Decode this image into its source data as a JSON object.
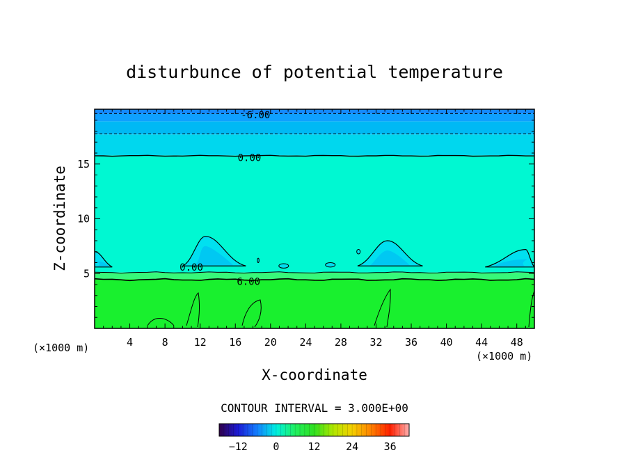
{
  "chart_data": {
    "type": "contour",
    "title": "disturbunce of potential temperature",
    "xlabel": "X-coordinate",
    "ylabel": "Z-coordinate",
    "x_unit_left": "(×1000 m)",
    "x_unit_right": "(×1000 m)",
    "xlim": [
      0,
      50
    ],
    "ylim": [
      0,
      20
    ],
    "x_ticks": [
      4,
      8,
      12,
      16,
      20,
      24,
      28,
      32,
      36,
      40,
      44,
      48
    ],
    "y_ticks": [
      5,
      10,
      15
    ],
    "contour_interval_text": "CONTOUR INTERVAL = 3.000E+00",
    "contour_labels": [
      {
        "text": "-6.00",
        "x": 18.3,
        "z": 19.5
      },
      {
        "text": "0.00",
        "x": 17.6,
        "z": 15.6
      },
      {
        "text": "0.00",
        "x": 11.0,
        "z": 5.6
      },
      {
        "text": "6.00",
        "x": 17.5,
        "z": 4.3
      }
    ],
    "bands": [
      {
        "z0": 0.0,
        "z1": 4.5,
        "value": 9,
        "color": "#19f02e"
      },
      {
        "z0": 4.5,
        "z1": 5.1,
        "value": 6,
        "color": "#37f87a"
      },
      {
        "z0": 5.1,
        "z1": 15.8,
        "value": 1.5,
        "color": "#00f8d2"
      },
      {
        "z0": 15.8,
        "z1": 17.7,
        "value": -1.5,
        "color": "#00d7ee"
      },
      {
        "z0": 17.7,
        "z1": 18.9,
        "value": -3.5,
        "color": "#00b9f4"
      },
      {
        "z0": 18.9,
        "z1": 19.6,
        "value": -5,
        "color": "#0fa0ff"
      },
      {
        "z0": 19.6,
        "z1": 20.0,
        "value": -6.5,
        "color": "#1489ff"
      }
    ],
    "cold_bubbles": [
      {
        "x_left": 10.0,
        "x_right": 17.2,
        "peak_x": 12.6,
        "peak_z": 8.4,
        "base_z": 5.7
      },
      {
        "x_left": 29.9,
        "x_right": 37.3,
        "peak_x": 33.3,
        "peak_z": 8.0,
        "base_z": 5.7
      },
      {
        "x_left": 44.4,
        "x_right": 50.0,
        "peak_x": 49.0,
        "peak_z": 7.2,
        "base_z": 5.6
      },
      {
        "x_left": 0.0,
        "x_right": 2.0,
        "peak_x": 0.0,
        "peak_z": 7.0,
        "base_z": 5.6
      }
    ],
    "colorbar": {
      "range": [
        -18,
        42
      ],
      "ticks": [
        -12,
        0,
        12,
        24,
        36
      ],
      "stops": [
        {
          "v": -18,
          "color": "#30004a"
        },
        {
          "v": -12,
          "color": "#1b1bd6"
        },
        {
          "v": -6,
          "color": "#1480ff"
        },
        {
          "v": 0,
          "color": "#00f0e0"
        },
        {
          "v": 6,
          "color": "#20f060"
        },
        {
          "v": 12,
          "color": "#30e020"
        },
        {
          "v": 18,
          "color": "#b0e800"
        },
        {
          "v": 24,
          "color": "#f5d000"
        },
        {
          "v": 30,
          "color": "#ff8000"
        },
        {
          "v": 36,
          "color": "#ff2000"
        },
        {
          "v": 42,
          "color": "#ffb0b0"
        }
      ]
    }
  }
}
